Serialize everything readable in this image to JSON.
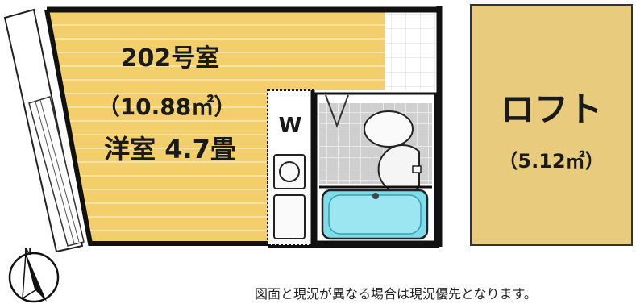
{
  "room": {
    "number": "202号室",
    "area": "（10.88㎡）",
    "type_size": "洋室 4.7畳"
  },
  "closet_label": "W",
  "loft": {
    "title": "ロフト",
    "area": "（5.12㎡）"
  },
  "compass": {
    "north_label": "N"
  },
  "note": "図面と現況が異なる場合は現況優先となります。",
  "colors": {
    "floor": "#f2cf6b",
    "floor_stripe": "#f7e3a6",
    "loft": "#e8cb7c",
    "wall": "#111111",
    "bath_tile": "#cfcfcf",
    "tub": "#7fdcea",
    "tile_grid": "#f0f0f0"
  }
}
